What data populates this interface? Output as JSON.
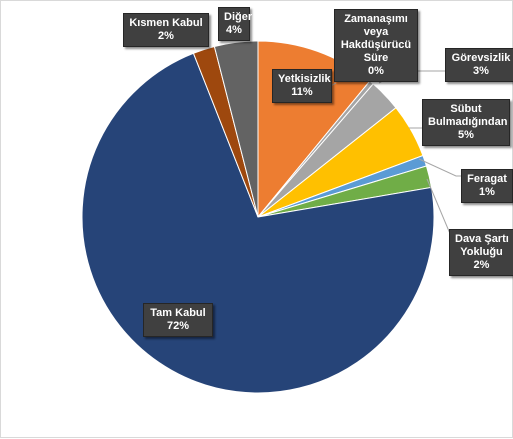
{
  "chart_data": {
    "type": "pie",
    "title": "",
    "slices": [
      {
        "name": "Yetkisizlik",
        "value": 11,
        "label_value": "11%",
        "color": "#ED7D31"
      },
      {
        "name": "Zamanaşımı veya Hakdüşürücü Süre",
        "value": 0.4,
        "label_value": "0%",
        "color": "#A5A5A5"
      },
      {
        "name": "Görevsizlik",
        "value": 3,
        "label_value": "3%",
        "color": "#A5A5A5"
      },
      {
        "name": "Sübut Bulmadığından",
        "value": 5,
        "label_value": "5%",
        "color": "#FFC000"
      },
      {
        "name": "Feragat",
        "value": 1,
        "label_value": "1%",
        "color": "#5B9BD5"
      },
      {
        "name": "Dava Şartı Yokluğu",
        "value": 2,
        "label_value": "2%",
        "color": "#70AD47"
      },
      {
        "name": "Tam Kabul",
        "value": 72,
        "label_value": "72%",
        "color": "#264478"
      },
      {
        "name": "Kısmen Kabul",
        "value": 2,
        "label_value": "2%",
        "color": "#9E480E"
      },
      {
        "name": "Diğer",
        "value": 4,
        "label_value": "4%",
        "color": "#636363"
      }
    ],
    "start_angle_deg": 0,
    "direction": "clockwise",
    "legend": "none",
    "labels": {
      "yetkisizlik": {
        "name": "Yetkisizlik",
        "value": "11%"
      },
      "zamanasimi": {
        "name_lines": [
          "Zamanaşımı",
          "veya",
          "Hakdüşürücü",
          "Süre"
        ],
        "value": "0%"
      },
      "gorevsizlik": {
        "name": "Görevsizlik",
        "value": "3%"
      },
      "subut": {
        "name_lines": [
          "Sübut",
          "Bulmadığından"
        ],
        "value": "5%"
      },
      "feragat": {
        "name": "Feragat",
        "value": "1%"
      },
      "dava": {
        "name_lines": [
          "Dava Şartı",
          "Yokluğu"
        ],
        "value": "2%"
      },
      "tam_kabul": {
        "name": "Tam Kabul",
        "value": "72%"
      },
      "kismen": {
        "name": "Kısmen Kabul",
        "value": "2%"
      },
      "diger": {
        "name": "Diğer",
        "value": "4%"
      }
    }
  }
}
